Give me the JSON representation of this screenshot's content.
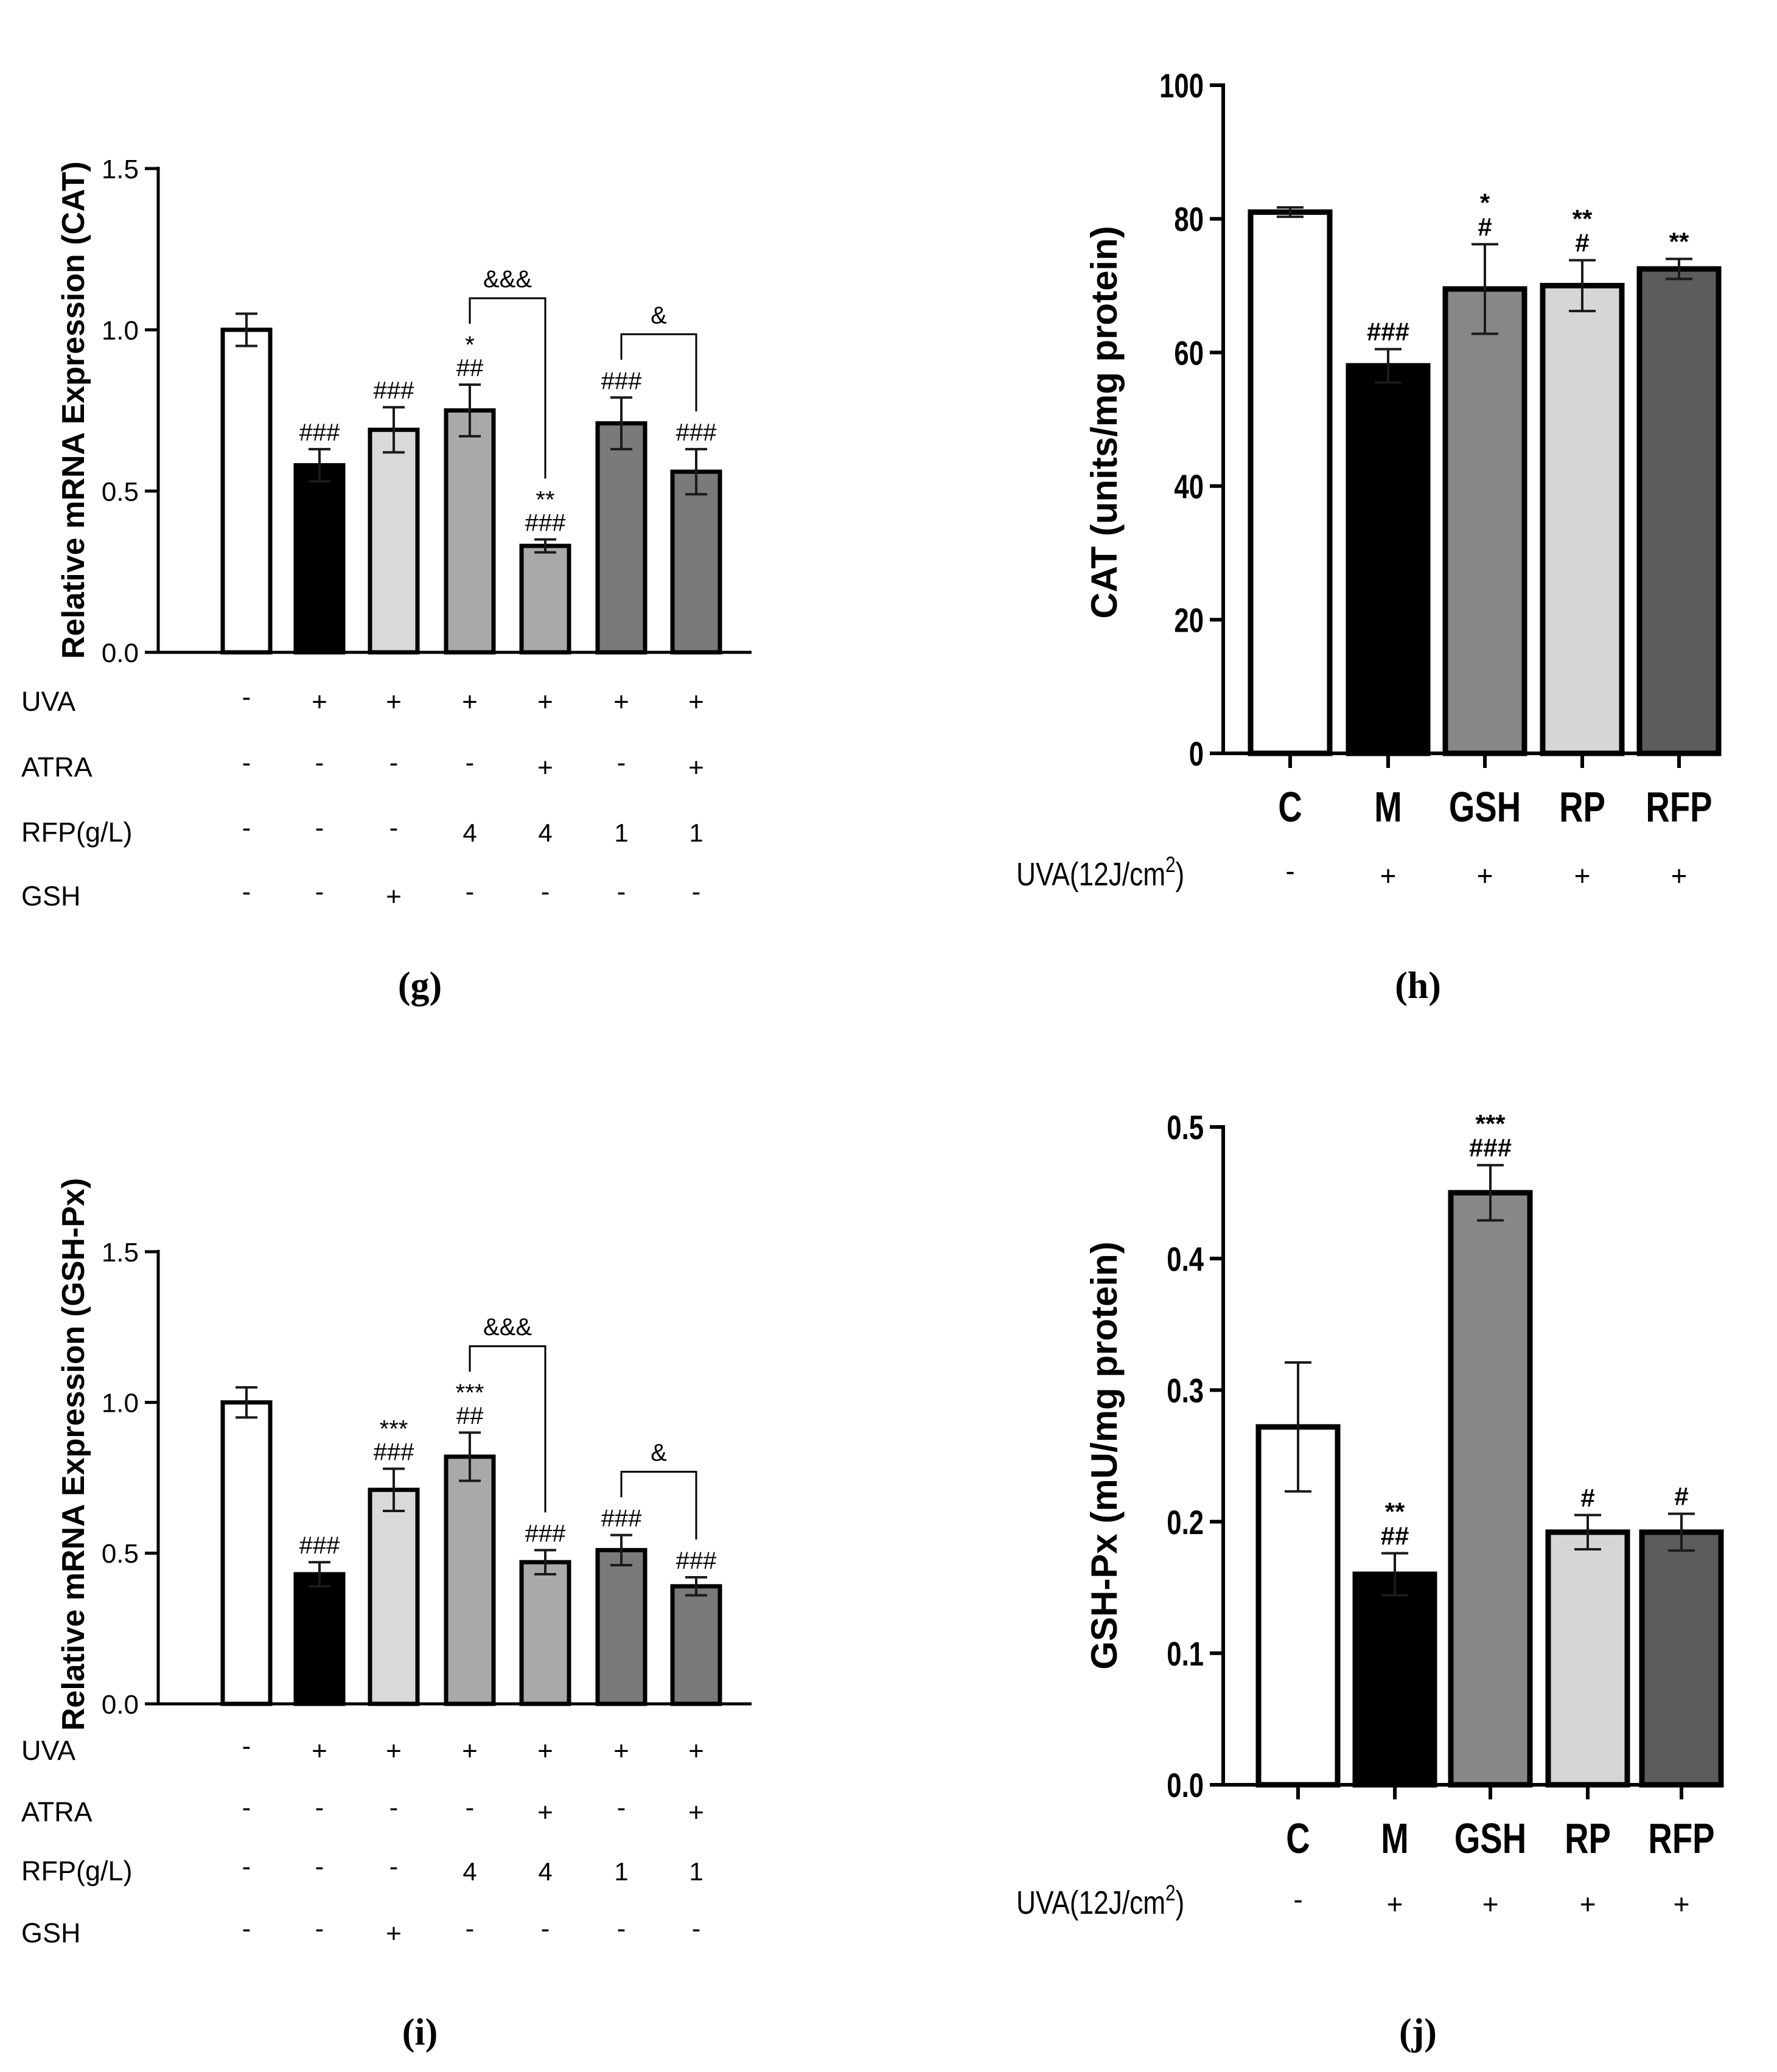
{
  "chart_data": [
    {
      "id": "g",
      "type": "bar",
      "panel_label": "(g)",
      "ylabel": "Relative mRNA Expression (CAT)",
      "ylim": [
        0,
        1.5
      ],
      "yticks": [
        "0.0",
        "0.5",
        "1.0",
        "1.5"
      ],
      "values": [
        1.0,
        0.58,
        0.69,
        0.75,
        0.33,
        0.71,
        0.56
      ],
      "errors": [
        0.05,
        0.05,
        0.07,
        0.08,
        0.02,
        0.08,
        0.07
      ],
      "colors": [
        "#ffffff",
        "#000000",
        "#d9d9d9",
        "#a9a9a9",
        "#a9a9a9",
        "#7a7a7a",
        "#7a7a7a"
      ],
      "annotations": [
        [],
        [
          "###"
        ],
        [
          "###"
        ],
        [
          "*",
          "##"
        ],
        [
          "**",
          "###"
        ],
        [
          "###"
        ],
        [
          "###"
        ]
      ],
      "brackets": [
        {
          "from": 3,
          "to": 4,
          "label": "&&&"
        },
        {
          "from": 5,
          "to": 6,
          "label": "&"
        }
      ],
      "condition_rows": [
        {
          "label": "UVA",
          "values": [
            "-",
            "+",
            "+",
            "+",
            "+",
            "+",
            "+"
          ]
        },
        {
          "label": "ATRA",
          "values": [
            "-",
            "-",
            "-",
            "-",
            "+",
            "-",
            "+"
          ]
        },
        {
          "label": "RFP(g/L)",
          "values": [
            "-",
            "-",
            "-",
            "4",
            "4",
            "1",
            "1"
          ]
        },
        {
          "label": "GSH",
          "values": [
            "-",
            "-",
            "+",
            "-",
            "-",
            "-",
            "-"
          ]
        }
      ]
    },
    {
      "id": "h",
      "type": "bar",
      "panel_label": "(h)",
      "ylabel": "CAT (units/mg protein)",
      "ylim": [
        0,
        100
      ],
      "yticks": [
        "0",
        "20",
        "40",
        "60",
        "80",
        "100"
      ],
      "categories": [
        "C",
        "M",
        "GSH",
        "RP",
        "RFP"
      ],
      "values": [
        81,
        58,
        69.5,
        70,
        72.5
      ],
      "errors": [
        0.7,
        2.5,
        6.7,
        3.8,
        1.5
      ],
      "colors": [
        "#ffffff",
        "#000000",
        "#878787",
        "#d6d6d6",
        "#5c5c5c"
      ],
      "annotations": [
        [],
        [
          "###"
        ],
        [
          "*",
          "#"
        ],
        [
          "**",
          "#"
        ],
        [
          "**"
        ]
      ],
      "uva_row": {
        "label_main": "UVA(12J/cm",
        "label_sup": "2",
        "label_end": ")",
        "values": [
          "-",
          "+",
          "+",
          "+",
          "+"
        ]
      }
    },
    {
      "id": "i",
      "type": "bar",
      "panel_label": "(i)",
      "ylabel": "Relative mRNA Expression (GSH-Px)",
      "ylim": [
        0,
        1.5
      ],
      "yticks": [
        "0.0",
        "0.5",
        "1.0",
        "1.5"
      ],
      "values": [
        1.0,
        0.43,
        0.71,
        0.82,
        0.47,
        0.51,
        0.39
      ],
      "errors": [
        0.05,
        0.04,
        0.07,
        0.08,
        0.04,
        0.05,
        0.03
      ],
      "colors": [
        "#ffffff",
        "#000000",
        "#d9d9d9",
        "#a9a9a9",
        "#a9a9a9",
        "#7a7a7a",
        "#7a7a7a"
      ],
      "annotations": [
        [],
        [
          "###"
        ],
        [
          "***",
          "###"
        ],
        [
          "***",
          "##"
        ],
        [
          "###"
        ],
        [
          "###"
        ],
        [
          "###"
        ]
      ],
      "brackets": [
        {
          "from": 3,
          "to": 4,
          "label": "&&&"
        },
        {
          "from": 5,
          "to": 6,
          "label": "&"
        }
      ],
      "condition_rows": [
        {
          "label": "UVA",
          "values": [
            "-",
            "+",
            "+",
            "+",
            "+",
            "+",
            "+"
          ]
        },
        {
          "label": "ATRA",
          "values": [
            "-",
            "-",
            "-",
            "-",
            "+",
            "-",
            "+"
          ]
        },
        {
          "label": "RFP(g/L)",
          "values": [
            "-",
            "-",
            "-",
            "4",
            "4",
            "1",
            "1"
          ]
        },
        {
          "label": "GSH",
          "values": [
            "-",
            "-",
            "+",
            "-",
            "-",
            "-",
            "-"
          ]
        }
      ]
    },
    {
      "id": "j",
      "type": "bar",
      "panel_label": "(j)",
      "ylabel": "GSH-Px (mU/mg protein)",
      "ylim": [
        0,
        0.5
      ],
      "yticks": [
        "0.0",
        "0.1",
        "0.2",
        "0.3",
        "0.4",
        "0.5"
      ],
      "categories": [
        "C",
        "M",
        "GSH",
        "RP",
        "RFP"
      ],
      "values": [
        0.272,
        0.16,
        0.45,
        0.192,
        0.192
      ],
      "errors": [
        0.049,
        0.016,
        0.021,
        0.013,
        0.014
      ],
      "colors": [
        "#ffffff",
        "#000000",
        "#878787",
        "#d6d6d6",
        "#5c5c5c"
      ],
      "annotations": [
        [],
        [
          "**",
          "##"
        ],
        [
          "***",
          "###"
        ],
        [
          "#"
        ],
        [
          "#"
        ]
      ],
      "uva_row": {
        "label_main": "UVA(12J/cm",
        "label_sup": "2",
        "label_end": ")",
        "values": [
          "-",
          "+",
          "+",
          "+",
          "+"
        ]
      }
    }
  ]
}
